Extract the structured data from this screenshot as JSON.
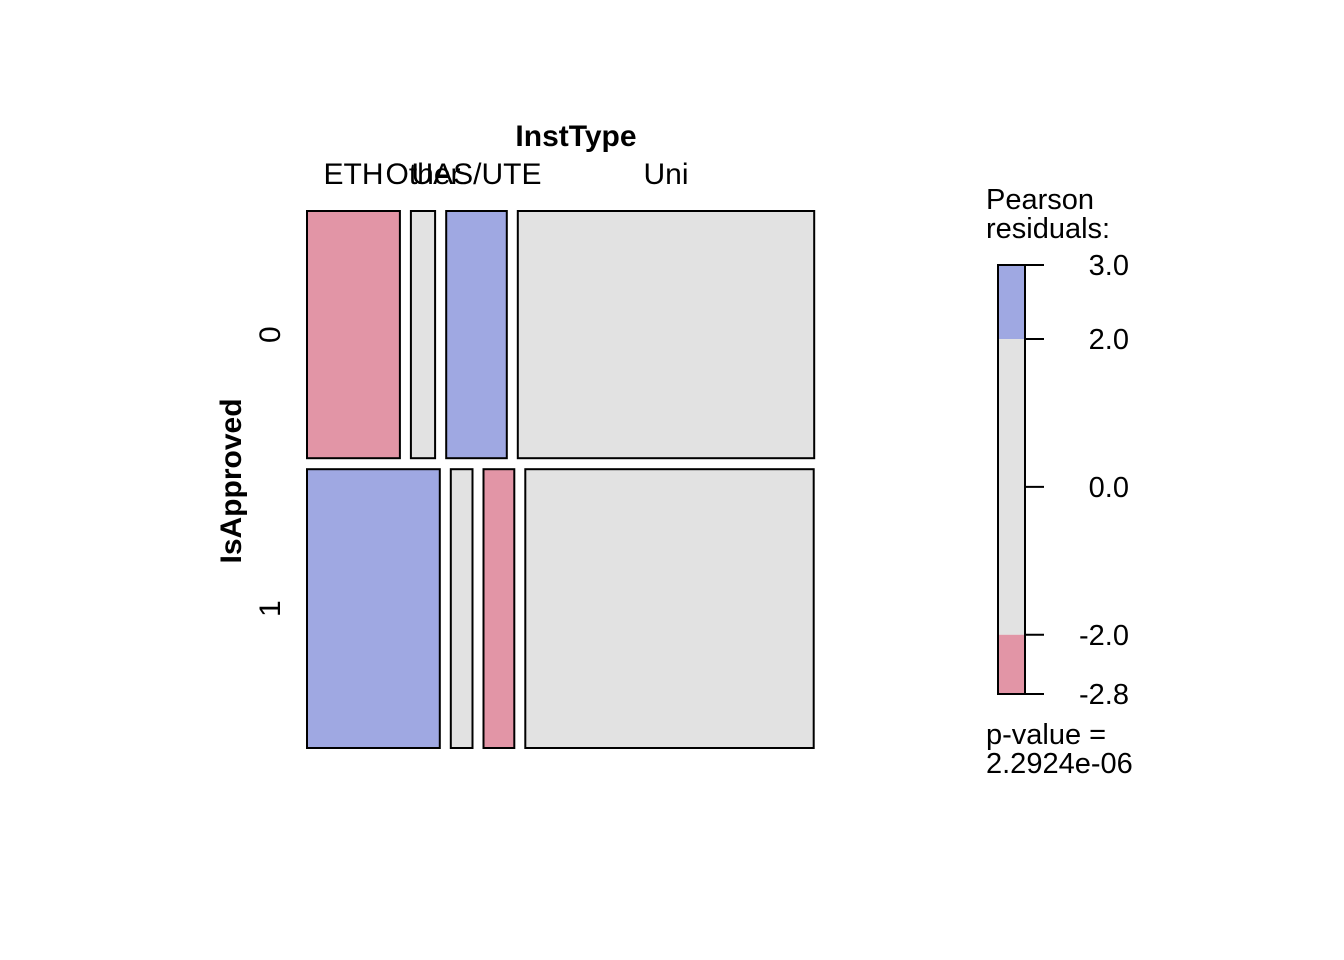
{
  "chart_data": {
    "type": "mosaic",
    "x_variable": "InstType",
    "y_variable": "IsApproved",
    "columns": [
      "ETH",
      "Other",
      "UAS/UTE",
      "Uni"
    ],
    "rows": [
      "0",
      "1"
    ],
    "cells": [
      {
        "col": "ETH",
        "row": "0",
        "col_share": 0.184,
        "row_share": 0.47,
        "residual_class": "negative"
      },
      {
        "col": "ETH",
        "row": "1",
        "col_share": 0.263,
        "row_share": 0.53,
        "residual_class": "positive"
      },
      {
        "col": "Other",
        "row": "0",
        "col_share": 0.048,
        "row_share": 0.47,
        "residual_class": "neutral"
      },
      {
        "col": "Other",
        "row": "1",
        "col_share": 0.043,
        "row_share": 0.53,
        "residual_class": "neutral"
      },
      {
        "col": "UAS/UTE",
        "row": "0",
        "col_share": 0.12,
        "row_share": 0.47,
        "residual_class": "positive"
      },
      {
        "col": "UAS/UTE",
        "row": "1",
        "col_share": 0.061,
        "row_share": 0.53,
        "residual_class": "negative"
      },
      {
        "col": "Uni",
        "row": "0",
        "col_share": 0.587,
        "row_share": 0.47,
        "residual_class": "neutral"
      },
      {
        "col": "Uni",
        "row": "1",
        "col_share": 0.571,
        "row_share": 0.53,
        "residual_class": "neutral"
      }
    ],
    "legend": {
      "title_line1": "Pearson",
      "title_line2": "residuals:",
      "ticks": [
        "3.0",
        "2.0",
        "0.0",
        "-2.0",
        "-2.8"
      ],
      "tick_values": [
        3.0,
        2.0,
        0.0,
        -2.0,
        -2.8
      ],
      "range": [
        -2.8,
        3.0
      ],
      "bands": [
        {
          "from": 2.0,
          "to": 3.0,
          "class": "positive"
        },
        {
          "from": -2.0,
          "to": 2.0,
          "class": "neutral"
        },
        {
          "from": -2.8,
          "to": -2.0,
          "class": "negative"
        }
      ],
      "pvalue_line1": "p-value =",
      "pvalue_line2": "2.2924e-06"
    },
    "colors": {
      "positive": "#9FA8E2",
      "negative": "#E295A6",
      "neutral": "#E2E2E2"
    }
  }
}
